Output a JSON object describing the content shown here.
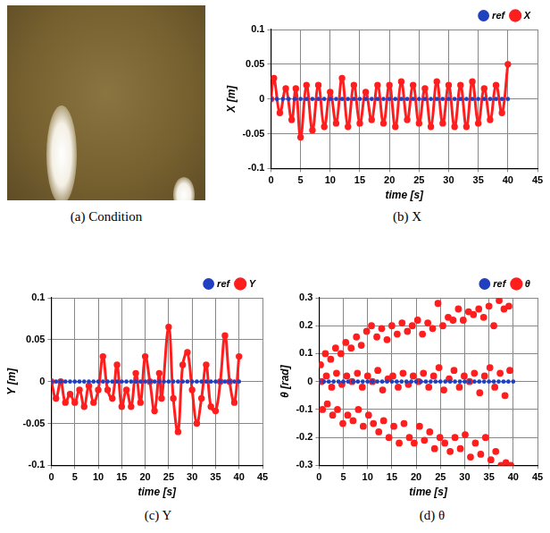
{
  "photo": {
    "caption": "(a) Condition"
  },
  "chart_data": [
    {
      "type": "scatter",
      "caption": "(b) X",
      "x_label": "time [s]",
      "y_label": "X [m]",
      "xlim": [
        0,
        45
      ],
      "xticks": [
        0,
        5,
        10,
        15,
        20,
        25,
        30,
        35,
        40,
        45
      ],
      "ylim": [
        -0.1,
        0.1
      ],
      "yticks": [
        -0.1,
        -0.05,
        0,
        0.05,
        0.1
      ],
      "grid": true,
      "legend": "top",
      "series": [
        {
          "name": "X",
          "color": "#ff1e1e",
          "marker": "circle",
          "line_style": "solid",
          "x": [
            0,
            0.5,
            1.5,
            2.5,
            3.5,
            4.2,
            5,
            6,
            7,
            8,
            9,
            10,
            11,
            12,
            13,
            14,
            15,
            16,
            17,
            18,
            19,
            20,
            21,
            22,
            23,
            24,
            25,
            26,
            27,
            28,
            29,
            30,
            31,
            32,
            33,
            34,
            35,
            36,
            37,
            38,
            39,
            40
          ],
          "values": [
            0,
            0.03,
            -0.02,
            0.015,
            -0.03,
            0.015,
            -0.055,
            0.02,
            -0.045,
            0.02,
            -0.04,
            0.01,
            -0.035,
            0.03,
            -0.04,
            0.02,
            -0.035,
            0.01,
            -0.03,
            0.02,
            -0.035,
            0.02,
            -0.04,
            0.025,
            -0.03,
            0.02,
            -0.035,
            0.015,
            -0.04,
            0.025,
            -0.035,
            0.02,
            -0.04,
            0.02,
            -0.04,
            0.025,
            -0.035,
            0.015,
            -0.03,
            0.02,
            -0.02,
            0.05
          ]
        },
        {
          "name": "ref",
          "color": "#2040c0",
          "marker": "circle",
          "line_style": "dotted",
          "x": [
            0,
            1,
            2,
            3,
            4,
            5,
            6,
            7,
            8,
            9,
            10,
            11,
            12,
            13,
            14,
            15,
            16,
            17,
            18,
            19,
            20,
            21,
            22,
            23,
            24,
            25,
            26,
            27,
            28,
            29,
            30,
            31,
            32,
            33,
            34,
            35,
            36,
            37,
            38,
            39,
            40
          ],
          "values": [
            0,
            0,
            0,
            0,
            0,
            0,
            0,
            0,
            0,
            0,
            0,
            0,
            0,
            0,
            0,
            0,
            0,
            0,
            0,
            0,
            0,
            0,
            0,
            0,
            0,
            0,
            0,
            0,
            0,
            0,
            0,
            0,
            0,
            0,
            0,
            0,
            0,
            0,
            0,
            0,
            0
          ]
        }
      ]
    },
    {
      "type": "scatter",
      "caption": "(c) Y",
      "x_label": "time [s]",
      "y_label": "Y [m]",
      "xlim": [
        0,
        45
      ],
      "xticks": [
        0,
        5,
        10,
        15,
        20,
        25,
        30,
        35,
        40,
        45
      ],
      "ylim": [
        -0.1,
        0.1
      ],
      "yticks": [
        -0.1,
        -0.05,
        0,
        0.05,
        0.1
      ],
      "grid": true,
      "legend": "top",
      "series": [
        {
          "name": "Y",
          "color": "#ff1e1e",
          "marker": "circle",
          "line_style": "solid",
          "x": [
            0,
            1,
            2,
            3,
            4,
            5,
            6,
            7,
            8,
            9,
            10,
            11,
            12,
            13,
            14,
            15,
            16,
            17,
            18,
            19,
            20,
            21,
            22,
            23,
            23.5,
            25,
            26,
            27,
            28,
            29,
            30,
            31,
            32,
            33,
            34,
            35,
            36,
            37,
            38,
            39,
            40
          ],
          "values": [
            0,
            -0.02,
            0,
            -0.025,
            -0.015,
            -0.025,
            -0.01,
            -0.03,
            -0.005,
            -0.025,
            -0.01,
            0.03,
            -0.01,
            -0.02,
            0.02,
            -0.03,
            -0.01,
            -0.03,
            0.01,
            -0.025,
            0.03,
            0,
            -0.035,
            0.01,
            -0.02,
            0.065,
            -0.02,
            -0.06,
            0.02,
            0.035,
            -0.01,
            -0.05,
            -0.02,
            0.02,
            -0.03,
            -0.035,
            0,
            0.055,
            0,
            -0.025,
            0.03
          ]
        },
        {
          "name": "ref",
          "color": "#2040c0",
          "marker": "circle",
          "line_style": "dotted",
          "x": [
            0,
            1,
            2,
            3,
            4,
            5,
            6,
            7,
            8,
            9,
            10,
            11,
            12,
            13,
            14,
            15,
            16,
            17,
            18,
            19,
            20,
            21,
            22,
            23,
            24,
            25,
            26,
            27,
            28,
            29,
            30,
            31,
            32,
            33,
            34,
            35,
            36,
            37,
            38,
            39,
            40
          ],
          "values": [
            0,
            0,
            0,
            0,
            0,
            0,
            0,
            0,
            0,
            0,
            0,
            0,
            0,
            0,
            0,
            0,
            0,
            0,
            0,
            0,
            0,
            0,
            0,
            0,
            0,
            0,
            0,
            0,
            0,
            0,
            0,
            0,
            0,
            0,
            0,
            0,
            0,
            0,
            0,
            0,
            0
          ]
        }
      ]
    },
    {
      "type": "scatter",
      "caption": "(d) θ",
      "x_label": "time [s]",
      "y_label": "θ [rad]",
      "xlim": [
        0,
        45
      ],
      "xticks": [
        0,
        5,
        10,
        15,
        20,
        25,
        30,
        35,
        40,
        45
      ],
      "ylim": [
        -0.3,
        0.3
      ],
      "yticks": [
        -0.3,
        -0.2,
        -0.1,
        0,
        0.1,
        0.2,
        0.3
      ],
      "grid": true,
      "legend": "top",
      "series": [
        {
          "name": "θ",
          "color": "#ff1e1e",
          "marker": "circle",
          "line_style": "none",
          "x": [
            0.3,
            0.5,
            0.7,
            1.3,
            1.5,
            1.7,
            2.4,
            2.6,
            2.8,
            3.4,
            3.6,
            3.8,
            4.5,
            4.7,
            4.9,
            5.5,
            5.7,
            5.9,
            6.6,
            6.8,
            7.0,
            7.7,
            7.9,
            8.1,
            8.7,
            8.9,
            9.1,
            9.8,
            10.0,
            10.2,
            10.8,
            11.0,
            11.2,
            11.9,
            12.1,
            12.3,
            12.9,
            13.1,
            13.3,
            14.0,
            14.2,
            14.4,
            15.0,
            15.2,
            15.4,
            16.1,
            16.3,
            16.5,
            17.1,
            17.3,
            17.5,
            18.2,
            18.4,
            18.6,
            19.2,
            19.4,
            19.6,
            20.3,
            20.5,
            20.7,
            21.3,
            21.5,
            21.7,
            22.4,
            22.6,
            22.8,
            23.4,
            23.6,
            23.8,
            24.5,
            24.7,
            24.9,
            25.5,
            25.7,
            25.9,
            26.6,
            26.8,
            27.0,
            27.6,
            27.8,
            28.0,
            28.7,
            28.9,
            29.1,
            29.7,
            29.9,
            30.1,
            30.8,
            31.0,
            31.2,
            31.8,
            32.0,
            32.2,
            32.9,
            33.1,
            33.3,
            33.9,
            34.1,
            34.3,
            35.0,
            35.2,
            35.4,
            36.0,
            36.2,
            36.4,
            37.1,
            37.3,
            37.5,
            38.1,
            38.3,
            38.5,
            39.1,
            39.3,
            39.5
          ],
          "values": [
            0.06,
            0,
            -0.1,
            0.1,
            0.02,
            -0.08,
            0.08,
            -0.02,
            -0.12,
            0.12,
            0.03,
            -0.1,
            0.1,
            -0.01,
            -0.15,
            0.14,
            0.02,
            -0.12,
            0.12,
            0,
            -0.14,
            0.16,
            0.03,
            -0.1,
            0.13,
            -0.02,
            -0.16,
            0.18,
            0.02,
            -0.12,
            0.2,
            0,
            -0.15,
            0.16,
            0.04,
            -0.18,
            0.19,
            -0.03,
            -0.14,
            0.15,
            0.01,
            -0.2,
            0.2,
            0.02,
            -0.16,
            0.17,
            -0.02,
            -0.22,
            0.21,
            0.03,
            -0.15,
            0.18,
            -0.01,
            -0.2,
            0.2,
            0.02,
            -0.22,
            0.22,
            0,
            -0.16,
            0.17,
            0.03,
            -0.21,
            0.21,
            -0.02,
            -0.18,
            0.19,
            0.02,
            -0.24,
            0.28,
            0.05,
            -0.2,
            0.2,
            -0.03,
            -0.22,
            0.23,
            0.01,
            -0.25,
            0.22,
            0.04,
            -0.2,
            0.26,
            -0.02,
            -0.24,
            0.22,
            0.02,
            -0.19,
            0.25,
            0,
            -0.27,
            0.24,
            0.03,
            -0.22,
            0.26,
            -0.04,
            -0.26,
            0.23,
            0.02,
            -0.2,
            0.27,
            0.05,
            -0.28,
            0.2,
            -0.02,
            -0.25,
            0.29,
            0.03,
            -0.3,
            0.26,
            -0.05,
            -0.29,
            0.27,
            0.04,
            -0.3
          ]
        },
        {
          "name": "ref",
          "color": "#2040c0",
          "marker": "circle",
          "line_style": "dotted",
          "x": [
            0,
            1,
            2,
            3,
            4,
            5,
            6,
            7,
            8,
            9,
            10,
            11,
            12,
            13,
            14,
            15,
            16,
            17,
            18,
            19,
            20,
            21,
            22,
            23,
            24,
            25,
            26,
            27,
            28,
            29,
            30,
            31,
            32,
            33,
            34,
            35,
            36,
            37,
            38,
            39,
            40
          ],
          "values": [
            0,
            0,
            0,
            0,
            0,
            0,
            0,
            0,
            0,
            0,
            0,
            0,
            0,
            0,
            0,
            0,
            0,
            0,
            0,
            0,
            0,
            0,
            0,
            0,
            0,
            0,
            0,
            0,
            0,
            0,
            0,
            0,
            0,
            0,
            0,
            0,
            0,
            0,
            0,
            0,
            0
          ]
        }
      ]
    }
  ]
}
